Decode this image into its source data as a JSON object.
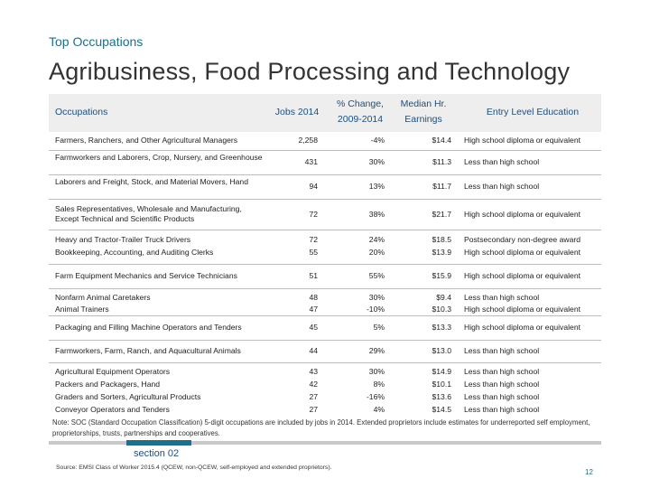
{
  "kicker": "Top Occupations",
  "title": "Agribusiness, Food Processing and Technology",
  "columns": {
    "occupation": "Occupations",
    "jobs": "Jobs 2014",
    "change": "% Change, 2009-2014",
    "earnings": "Median Hr. Earnings",
    "education": "Entry Level Education"
  },
  "rows": [
    [
      {
        "occupation": "Farmers, Ranchers, and Other Agricultural Managers",
        "jobs": "2,258",
        "change": "-4%",
        "earnings": "$14.4",
        "education": "High school diploma or equivalent"
      }
    ],
    [
      {
        "occupation": "Farmworkers and Laborers, Crop, Nursery, and Greenhouse",
        "jobs": "431",
        "change": "30%",
        "earnings": "$11.3",
        "education": "Less than high school"
      }
    ],
    [
      {
        "occupation": "Laborers and Freight, Stock, and Material Movers, Hand",
        "jobs": "94",
        "change": "13%",
        "earnings": "$11.7",
        "education": "Less than high school"
      }
    ],
    [
      {
        "occupation": "Sales Representatives, Wholesale and Manufacturing, Except Technical and Scientific Products",
        "jobs": "72",
        "change": "38%",
        "earnings": "$21.7",
        "education": "High school diploma or equivalent"
      }
    ],
    [
      {
        "occupation": "Heavy and Tractor-Trailer Truck Drivers",
        "jobs": "72",
        "change": "24%",
        "earnings": "$18.5",
        "education": "Postsecondary non-degree award"
      },
      {
        "occupation": "Bookkeeping, Accounting, and Auditing Clerks",
        "jobs": "55",
        "change": "20%",
        "earnings": "$13.9",
        "education": "High school diploma or equivalent"
      }
    ],
    [
      {
        "occupation": "Farm Equipment Mechanics and Service Technicians",
        "jobs": "51",
        "change": "55%",
        "earnings": "$15.9",
        "education": "High school diploma or equivalent"
      }
    ],
    [
      {
        "occupation": "Nonfarm Animal Caretakers",
        "jobs": "48",
        "change": "30%",
        "earnings": "$9.4",
        "education": "Less than high school"
      },
      {
        "occupation": "Animal Trainers",
        "jobs": "47",
        "change": "-10%",
        "earnings": "$10.3",
        "education": "High school diploma or equivalent"
      }
    ],
    [
      {
        "occupation": "Packaging and Filling Machine Operators and Tenders",
        "jobs": "45",
        "change": "5%",
        "earnings": "$13.3",
        "education": "High school diploma or equivalent"
      }
    ],
    [
      {
        "occupation": "Farmworkers, Farm, Ranch, and Aquacultural Animals",
        "jobs": "44",
        "change": "29%",
        "earnings": "$13.0",
        "education": "Less than high school"
      }
    ],
    [
      {
        "occupation": "Agricultural Equipment Operators",
        "jobs": "43",
        "change": "30%",
        "earnings": "$14.9",
        "education": "Less than high school"
      },
      {
        "occupation": "Packers and Packagers, Hand",
        "jobs": "42",
        "change": "8%",
        "earnings": "$10.1",
        "education": "Less than high school"
      },
      {
        "occupation": "Graders and Sorters, Agricultural Products",
        "jobs": "27",
        "change": "-16%",
        "earnings": "$13.6",
        "education": "Less than high school"
      },
      {
        "occupation": "Conveyor Operators and Tenders",
        "jobs": "27",
        "change": "4%",
        "earnings": "$14.5",
        "education": "Less than high school"
      }
    ]
  ],
  "note": "Note: SOC (Standard Occupation Classification) 5-digit occupations are included by jobs in 2014. Extended proprietors include estimates for underreported self employment, proprietorships, trusts, partnerships and cooperatives.",
  "section": "section 02",
  "source": "Source: EMSI Class of Worker 2015.4 (QCEW, non-QCEW, self-employed and extended proprietors).",
  "page_number": "12",
  "colors": {
    "accent": "#1f6f8b",
    "header_bg": "#eeeeee",
    "header_text": "#1f4e79"
  }
}
